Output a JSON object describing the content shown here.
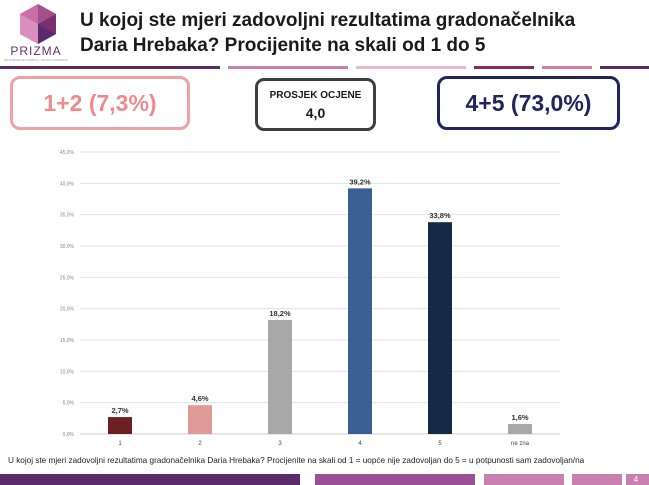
{
  "header": {
    "logo_text": "PRIZMA",
    "logo_subtext": "ISTRAŽIVANJE TRŽIŠTA I JAVNOG MNIJENJA",
    "title_line1": "U kojoj ste mjeri zadovoljni rezultatima gradonačelnika",
    "title_line2": "Daria Hrebaka? Procijenite na skali od 1 do 5"
  },
  "summary": {
    "low_label": "1+2 (7,3%)",
    "avg_label": "PROSJEK OCJENE",
    "avg_value": "4,0",
    "high_label": "4+5 (73,0%)"
  },
  "chart_data": {
    "type": "bar",
    "categories": [
      "1",
      "2",
      "3",
      "4",
      "5",
      "ne zna"
    ],
    "values": [
      2.7,
      4.6,
      18.2,
      39.2,
      33.8,
      1.6
    ],
    "value_labels": [
      "2,7%",
      "4,6%",
      "18,2%",
      "39,2%",
      "33,8%",
      "1,6%"
    ],
    "colors": [
      "#6e1f24",
      "#e09a98",
      "#a8a8a8",
      "#3a5f92",
      "#152a45",
      "#a8a8a8"
    ],
    "ylim": [
      0,
      45
    ],
    "yticks": [
      0,
      5,
      10,
      15,
      20,
      25,
      30,
      35,
      40,
      45
    ],
    "ytick_labels": [
      "0,0%",
      "5,0%",
      "10,0%",
      "15,0%",
      "20,0%",
      "25,0%",
      "30,0%",
      "35,0%",
      "40,0%",
      "45,0%"
    ],
    "grid": true
  },
  "footnote": "U kojoj ste mjeri zadovoljni rezultatima gradonačelnika Daria Hrebaka? Procijenite na skali od 1 = uopće nije zadovoljan do 5 = u potpunosti sam zadovoljan/na",
  "page_number": "4",
  "colors": {
    "brand_purple": "#5a2a6b",
    "pink": "#c97fb0",
    "accent_low": "#f08a8f",
    "accent_high": "#23235e"
  }
}
